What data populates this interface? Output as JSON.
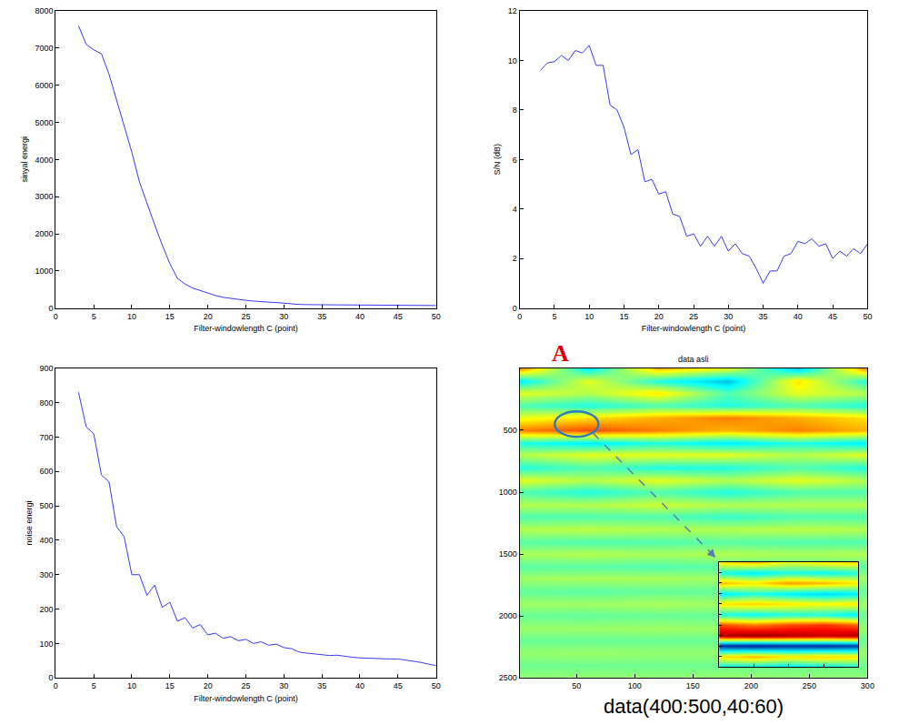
{
  "chart_data": [
    {
      "type": "line",
      "xlabel": "Filter-windowlength C (point)",
      "ylabel": "sinyal energi",
      "color": "#3b3bf0",
      "grid": false,
      "x": [
        3,
        4,
        5,
        6,
        7,
        8,
        9,
        10,
        11,
        12,
        13,
        14,
        15,
        16,
        17,
        18,
        19,
        20,
        21,
        22,
        23,
        24,
        25,
        26,
        27,
        28,
        29,
        30,
        31,
        32,
        33,
        34,
        35,
        36,
        37,
        38,
        39,
        40,
        41,
        42,
        43,
        44,
        45,
        46,
        47,
        48,
        49,
        50
      ],
      "values": [
        7600,
        7100,
        6950,
        6850,
        6300,
        5600,
        4900,
        4200,
        3400,
        2800,
        2250,
        1700,
        1200,
        800,
        650,
        540,
        470,
        400,
        340,
        290,
        260,
        240,
        210,
        190,
        170,
        160,
        150,
        130,
        110,
        100,
        95,
        90,
        90,
        90,
        88,
        86,
        85,
        84,
        83,
        82,
        80,
        80,
        79,
        78,
        77,
        75,
        72,
        70
      ],
      "xlim": [
        0,
        50
      ],
      "xticks": [
        0,
        5,
        10,
        15,
        20,
        25,
        30,
        35,
        40,
        45,
        50
      ],
      "ylim": [
        0,
        8000
      ],
      "yticks": [
        0,
        1000,
        2000,
        3000,
        4000,
        5000,
        6000,
        7000,
        8000
      ]
    },
    {
      "type": "line",
      "xlabel": "Filter-windowlength C (point)",
      "ylabel": "S/N (dB)",
      "color": "#3b3bf0",
      "grid": false,
      "x": [
        3,
        4,
        5,
        6,
        7,
        8,
        9,
        10,
        11,
        12,
        13,
        14,
        15,
        16,
        17,
        18,
        19,
        20,
        21,
        22,
        23,
        24,
        25,
        26,
        27,
        28,
        29,
        30,
        31,
        32,
        33,
        34,
        35,
        36,
        37,
        38,
        39,
        40,
        41,
        42,
        43,
        44,
        45,
        46,
        47,
        48,
        49,
        50
      ],
      "values": [
        9.6,
        9.9,
        9.95,
        10.2,
        10.0,
        10.4,
        10.3,
        10.6,
        9.8,
        9.8,
        8.2,
        8.0,
        7.3,
        6.2,
        6.4,
        5.1,
        5.2,
        4.6,
        4.7,
        3.8,
        3.7,
        2.9,
        3.0,
        2.5,
        2.9,
        2.5,
        2.9,
        2.3,
        2.6,
        2.2,
        2.1,
        1.6,
        1.0,
        1.5,
        1.5,
        2.1,
        2.2,
        2.7,
        2.6,
        2.8,
        2.5,
        2.6,
        2.0,
        2.3,
        2.1,
        2.4,
        2.2,
        2.6
      ],
      "xlim": [
        0,
        50
      ],
      "xticks": [
        0,
        5,
        10,
        15,
        20,
        25,
        30,
        35,
        40,
        45,
        50
      ],
      "ylim": [
        0,
        12
      ],
      "yticks": [
        0,
        2,
        4,
        6,
        8,
        10,
        12
      ]
    },
    {
      "type": "line",
      "xlabel": "Filter-windowlength C (point)",
      "ylabel": "noise energi",
      "color": "#3b3bf0",
      "grid": false,
      "x": [
        3,
        4,
        5,
        6,
        7,
        8,
        9,
        10,
        11,
        12,
        13,
        14,
        15,
        16,
        17,
        18,
        19,
        20,
        21,
        22,
        23,
        24,
        25,
        26,
        27,
        28,
        29,
        30,
        31,
        32,
        33,
        34,
        35,
        36,
        37,
        38,
        39,
        40,
        41,
        42,
        43,
        44,
        45,
        46,
        47,
        48,
        49,
        50
      ],
      "values": [
        830,
        730,
        710,
        590,
        570,
        440,
        410,
        300,
        300,
        240,
        270,
        205,
        220,
        165,
        175,
        145,
        155,
        125,
        130,
        115,
        120,
        108,
        112,
        100,
        105,
        95,
        98,
        88,
        85,
        75,
        72,
        70,
        68,
        65,
        66,
        62,
        60,
        58,
        57,
        56,
        56,
        55,
        55,
        52,
        48,
        45,
        40,
        36
      ],
      "xlim": [
        0,
        50
      ],
      "xticks": [
        0,
        5,
        10,
        15,
        20,
        25,
        30,
        35,
        40,
        45,
        50
      ],
      "ylim": [
        0,
        900
      ],
      "yticks": [
        0,
        100,
        200,
        300,
        400,
        500,
        600,
        700,
        800,
        900
      ]
    },
    {
      "type": "heatmap",
      "title": "data asli",
      "grid": false,
      "x": [
        0,
        60,
        120,
        180,
        240,
        300
      ],
      "y": [
        0,
        100,
        200,
        300,
        400,
        500,
        600,
        700,
        800,
        900,
        1000,
        1100,
        1200,
        1300,
        1400,
        1500,
        1600,
        1700,
        1800,
        1900,
        2000,
        2100,
        2200,
        2300,
        2400,
        2500
      ],
      "z": [
        [
          0.5,
          -0.3,
          0.4,
          0.2,
          -0.4,
          0.5
        ],
        [
          -0.3,
          0.2,
          -0.2,
          -0.4,
          0.3,
          -0.2
        ],
        [
          0.2,
          0.1,
          0.3,
          -0.1,
          0.2,
          0.1
        ],
        [
          -0.1,
          -0.2,
          -0.1,
          -0.2,
          -0.1,
          -0.2
        ],
        [
          0.2,
          0.3,
          0.4,
          0.5,
          0.4,
          0.3
        ],
        [
          0.5,
          0.6,
          0.5,
          0.4,
          0.5,
          0.4
        ],
        [
          -0.2,
          -0.3,
          -0.2,
          -0.3,
          -0.2,
          -0.3
        ],
        [
          0.1,
          0.2,
          0.2,
          0.2,
          0.1,
          0.2
        ],
        [
          -0.2,
          -0.1,
          -0.2,
          -0.2,
          -0.1,
          -0.2
        ],
        [
          0.2,
          0.1,
          0.2,
          0.1,
          0.2,
          0.1
        ],
        [
          -0.1,
          -0.2,
          -0.1,
          -0.2,
          -0.1,
          -0.1
        ],
        [
          0.1,
          0.1,
          0.15,
          0.1,
          0.1,
          0.1
        ],
        [
          -0.1,
          -0.1,
          -0.1,
          -0.15,
          -0.1,
          -0.1
        ],
        [
          0.1,
          0.12,
          0.1,
          0.1,
          0.12,
          0.1
        ],
        [
          -0.08,
          -0.1,
          -0.1,
          -0.08,
          -0.1,
          -0.1
        ],
        [
          0.08,
          0.1,
          0.08,
          0.1,
          0.08,
          0.1
        ],
        [
          -0.08,
          -0.08,
          -0.1,
          -0.08,
          -0.08,
          -0.08
        ],
        [
          0.06,
          0.08,
          0.08,
          0.06,
          0.08,
          0.06
        ],
        [
          -0.06,
          -0.08,
          -0.06,
          -0.06,
          -0.08,
          -0.06
        ],
        [
          0.06,
          0.06,
          0.08,
          0.06,
          0.06,
          0.06
        ],
        [
          -0.05,
          -0.06,
          -0.05,
          -0.06,
          -0.05,
          -0.05
        ],
        [
          0.05,
          0.05,
          0.06,
          0.05,
          0.05,
          0.05
        ],
        [
          -0.05,
          -0.05,
          -0.05,
          -0.05,
          -0.05,
          -0.05
        ],
        [
          0.04,
          0.05,
          0.04,
          0.04,
          0.05,
          0.04
        ],
        [
          -0.04,
          -0.04,
          -0.04,
          -0.04,
          -0.04,
          -0.04
        ],
        [
          0.03,
          0.04,
          0.03,
          0.04,
          0.03,
          0.03
        ]
      ],
      "zlim": [
        -1,
        1
      ],
      "xlim": [
        1,
        300
      ],
      "xticks": [
        50,
        100,
        150,
        200,
        250,
        300
      ],
      "ylim": [
        2500,
        0
      ],
      "yticks": [
        500,
        1000,
        1500,
        2000,
        2500
      ],
      "annotations": [
        {
          "text": "A",
          "color": "#e00000"
        },
        {
          "text": "data(400:500,40:60)"
        }
      ],
      "inset": {
        "type": "heatmap",
        "tick_labels": false,
        "x": [
          40,
          45,
          50,
          55,
          60
        ],
        "y": [
          400,
          410,
          420,
          430,
          440,
          450,
          460,
          470,
          480,
          490,
          500
        ],
        "z": [
          [
            0.3,
            0.4,
            0.2,
            0.3,
            0.35
          ],
          [
            -0.2,
            -0.3,
            -0.2,
            -0.25,
            -0.2
          ],
          [
            0.4,
            0.3,
            0.45,
            0.4,
            0.3
          ],
          [
            -0.3,
            -0.2,
            -0.3,
            -0.35,
            -0.3
          ],
          [
            0.3,
            0.35,
            0.3,
            0.25,
            0.3
          ],
          [
            -0.2,
            -0.25,
            -0.2,
            -0.2,
            -0.3
          ],
          [
            0.6,
            0.5,
            0.6,
            0.65,
            0.55
          ],
          [
            0.9,
            0.95,
            0.9,
            0.85,
            0.9
          ],
          [
            -0.8,
            -0.85,
            -0.8,
            -0.8,
            -0.75
          ],
          [
            0.3,
            0.4,
            0.3,
            0.35,
            0.3
          ],
          [
            -0.3,
            -0.3,
            -0.35,
            -0.3,
            -0.25
          ]
        ],
        "zlim": [
          -1,
          1
        ],
        "xlim": [
          40,
          60
        ],
        "xticks": [
          40,
          45,
          50,
          55,
          60
        ],
        "ylim": [
          500,
          400
        ],
        "yticks": [
          400,
          410,
          420,
          430,
          440,
          450,
          460,
          470,
          480,
          490,
          500
        ]
      }
    }
  ]
}
